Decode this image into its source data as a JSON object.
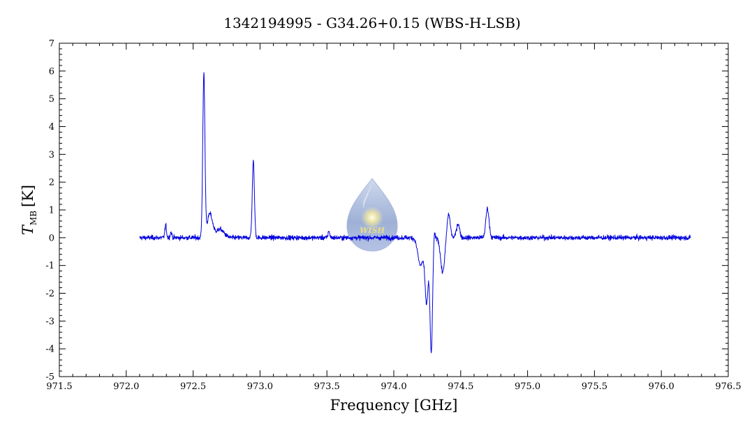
{
  "chart_data": {
    "type": "line",
    "title": "1342194995 - G34.26+0.15 (WBS-H-LSB)",
    "xlabel": "Frequency [GHz]",
    "ylabel_main": "T",
    "ylabel_sub": "MB",
    "ylabel_unit": "[K]",
    "xlim": [
      971.5,
      976.5
    ],
    "ylim": [
      -5,
      7
    ],
    "xticks": [
      "971.5",
      "972.0",
      "972.5",
      "973.0",
      "973.5",
      "974.0",
      "974.5",
      "975.0",
      "975.5",
      "976.0",
      "976.5"
    ],
    "yticks": [
      "-5",
      "-4",
      "-3",
      "-2",
      "-1",
      "0",
      "1",
      "2",
      "3",
      "4",
      "5",
      "6",
      "7"
    ],
    "grid": false,
    "series": [
      {
        "name": "",
        "color": "#0000dd",
        "x_range": [
          972.1,
          976.22
        ],
        "noise_rms": 0.07,
        "features": [
          {
            "center": 972.295,
            "amplitude": 0.45,
            "width": 0.006
          },
          {
            "center": 972.335,
            "amplitude": 0.2,
            "width": 0.006
          },
          {
            "center": 972.58,
            "amplitude": 5.85,
            "width": 0.008
          },
          {
            "center": 972.625,
            "amplitude": 0.85,
            "width": 0.02
          },
          {
            "center": 972.7,
            "amplitude": 0.3,
            "width": 0.03
          },
          {
            "center": 972.95,
            "amplitude": 2.75,
            "width": 0.008
          },
          {
            "center": 973.515,
            "amplitude": 0.25,
            "width": 0.006
          },
          {
            "center": 974.2,
            "amplitude": -1.0,
            "width": 0.02
          },
          {
            "center": 974.245,
            "amplitude": -2.3,
            "width": 0.012
          },
          {
            "center": 974.28,
            "amplitude": -4.1,
            "width": 0.01
          },
          {
            "center": 974.3,
            "amplitude": 0.4,
            "width": 0.006
          },
          {
            "center": 974.365,
            "amplitude": -1.25,
            "width": 0.015
          },
          {
            "center": 974.41,
            "amplitude": 0.85,
            "width": 0.012
          },
          {
            "center": 974.48,
            "amplitude": 0.5,
            "width": 0.012
          },
          {
            "center": 974.7,
            "amplitude": 1.05,
            "width": 0.012
          }
        ]
      }
    ]
  },
  "watermark": {
    "text": "WISH",
    "colors": {
      "top": "#aebfdb",
      "bottom": "#7f95c4",
      "star": "#ffee66"
    }
  }
}
